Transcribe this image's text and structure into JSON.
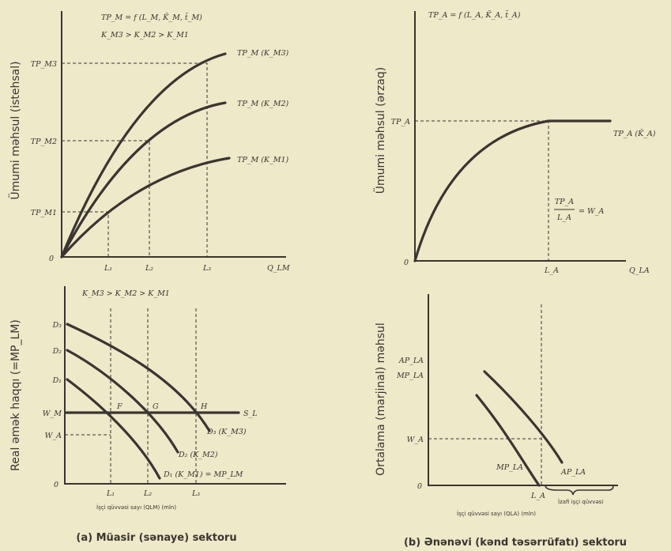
{
  "panel_a": {
    "top": {
      "y_axis_label": "Ümumi məhsul (istehsal)",
      "formula_1": "TP_M = f (L_M, K̄_M, t̄_M)",
      "formula_2": "K_M3 > K_M2 > K_M1",
      "y_ticks": [
        "TP_M3",
        "TP_M2",
        "TP_M1"
      ],
      "x_ticks": [
        "L₁",
        "L₂",
        "L₃"
      ],
      "origin": "0",
      "x_axis_label": "Q_LM",
      "curves": [
        "TP_M (K_M3)",
        "TP_M (K_M2)",
        "TP_M (K_M1)"
      ]
    },
    "bottom": {
      "y_axis_label": "Real əmək haqqı (=MP_LM)",
      "condition": "K_M3 > K_M2 > K_M1",
      "y_ticks": [
        "D₃",
        "D₂",
        "D₁",
        "W_M",
        "W_A"
      ],
      "points": [
        "F",
        "G",
        "H"
      ],
      "supply_label": "S_L",
      "curves": [
        "D₃ (K_M3)",
        "D₂ (K_M2)",
        "D₁ (K_M1) = MP_LM"
      ],
      "x_ticks": [
        "L₁",
        "L₂",
        "L₃"
      ],
      "origin": "0",
      "x_axis_label": "İşçi qüvvəsi sayı (QLM) (mln)"
    },
    "caption": "(a) Müasir (sənaye) sektoru"
  },
  "panel_b": {
    "top": {
      "y_axis_label": "Ümumi məhsul (ərzaq)",
      "formula": "TP_A = f (L_A, K̄_A, t̄_A)",
      "y_tick": "TP_A",
      "curve": "TP_A (K̄_A)",
      "ratio_num": "TP_A",
      "ratio_den": "L_A",
      "ratio_rhs": "= W_A",
      "x_tick": "L_A",
      "origin": "0",
      "x_axis_label": "Q_LA"
    },
    "bottom": {
      "y_axis_label": "Ortalama (marjinal) məhsul",
      "y_tick_1": "AP_LA",
      "y_tick_2": "MP_LA",
      "y_tick_w": "W_A",
      "curve_mp": "MP_LA",
      "curve_ap": "AP_LA",
      "x_tick": "L_A",
      "origin": "0",
      "surplus_label": "İzafi işçi qüvvəsi",
      "x_axis_label": "İşçi qüvvəsi sayı (QLA) (mln)"
    },
    "caption": "(b) Ənənəvi (kənd təsərrüfatı) sektoru"
  }
}
